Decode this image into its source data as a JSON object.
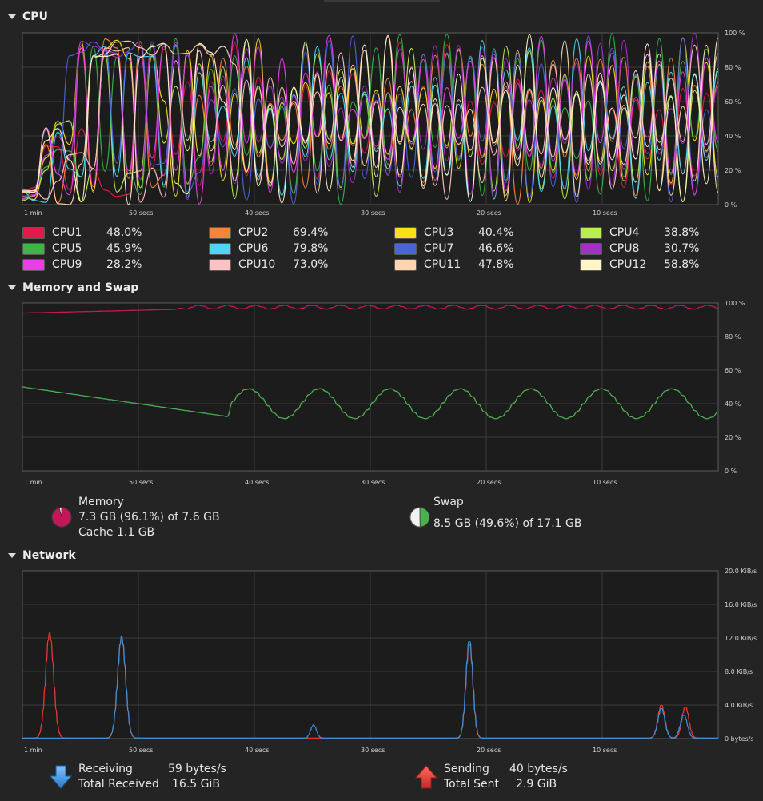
{
  "sections": {
    "cpu": "CPU",
    "memory": "Memory and Swap",
    "network": "Network"
  },
  "x_ticks": [
    "1 min",
    "50 secs",
    "40 secs",
    "30 secs",
    "20 secs",
    "10 secs"
  ],
  "cpu": {
    "y_ticks": [
      "100 %",
      "80 %",
      "60 %",
      "40 %",
      "20 %",
      "0 %"
    ],
    "cores": [
      {
        "name": "CPU1",
        "value": "48.0%",
        "color": "#e01b4c"
      },
      {
        "name": "CPU2",
        "value": "69.4%",
        "color": "#f6853b"
      },
      {
        "name": "CPU3",
        "value": "40.4%",
        "color": "#f8e01a"
      },
      {
        "name": "CPU4",
        "value": "38.8%",
        "color": "#b9ee4d"
      },
      {
        "name": "CPU5",
        "value": "45.9%",
        "color": "#3bb54a"
      },
      {
        "name": "CPU6",
        "value": "79.8%",
        "color": "#4fd7f2"
      },
      {
        "name": "CPU7",
        "value": "46.6%",
        "color": "#4a64d9"
      },
      {
        "name": "CPU8",
        "value": "30.7%",
        "color": "#a42fc6"
      },
      {
        "name": "CPU9",
        "value": "28.2%",
        "color": "#ea3ce8"
      },
      {
        "name": "CPU10",
        "value": "73.0%",
        "color": "#ffc1c3"
      },
      {
        "name": "CPU11",
        "value": "47.8%",
        "color": "#ffd5b0"
      },
      {
        "name": "CPU12",
        "value": "58.8%",
        "color": "#fff6c8"
      }
    ]
  },
  "memory": {
    "y_ticks": [
      "100 %",
      "80 %",
      "60 %",
      "40 %",
      "20 %",
      "0 %"
    ],
    "memory_color": "#c2185b",
    "swap_color": "#4caf50",
    "memory_label": "Memory",
    "memory_usage": "7.3 GB (96.1%) of 7.6 GB",
    "memory_cache": "Cache 1.1 GB",
    "memory_fraction": 0.961,
    "swap_label": "Swap",
    "swap_usage": "8.5 GB (49.6%) of 17.1 GB",
    "swap_fraction": 0.496
  },
  "network": {
    "y_ticks": [
      "20.0 KiB/s",
      "16.0 KiB/s",
      "12.0 KiB/s",
      "8.0 KiB/s",
      "4.0 KiB/s",
      "0 bytes/s"
    ],
    "receiving_color": "#3b8fd6",
    "sending_color": "#e53935",
    "receiving_label": "Receiving",
    "receiving_rate": "59 bytes/s",
    "total_received_label": "Total Received",
    "total_received": "16.5 GiB",
    "sending_label": "Sending",
    "sending_rate": "40 bytes/s",
    "total_sent_label": "Total Sent",
    "total_sent": "2.9 GiB"
  }
}
